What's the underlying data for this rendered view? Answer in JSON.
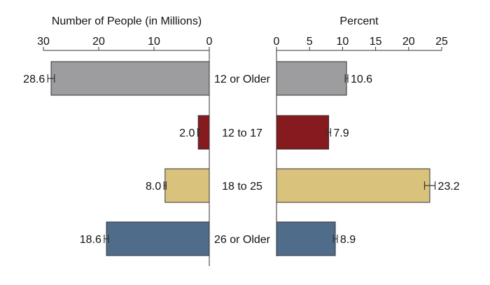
{
  "chart_data": [
    {
      "type": "bar",
      "orientation": "horizontal",
      "direction": "leftward",
      "title": "Number of People (in Millions)",
      "categories": [
        "12 or Older",
        "12 to 17",
        "18 to 25",
        "26 or Older"
      ],
      "values": [
        28.6,
        2.0,
        8.0,
        18.6
      ],
      "value_labels": [
        "28.6",
        "2.0",
        "8.0",
        "18.6"
      ],
      "error_half_width": [
        0.6,
        0.1,
        0.2,
        0.4
      ],
      "xlim": [
        0,
        30
      ],
      "ticks": [
        30,
        20,
        10,
        0
      ],
      "tick_labels": [
        "30",
        "20",
        "10",
        "0"
      ],
      "colors": [
        "#9d9d9f",
        "#871a1f",
        "#d9c27c",
        "#4f6d8a"
      ],
      "grid": false
    },
    {
      "type": "bar",
      "orientation": "horizontal",
      "direction": "rightward",
      "title": "Percent",
      "categories": [
        "12 or Older",
        "12 to 17",
        "18 to 25",
        "26 or Older"
      ],
      "values": [
        10.6,
        7.9,
        23.2,
        8.9
      ],
      "value_labels": [
        "10.6",
        "7.9",
        "23.2",
        "8.9"
      ],
      "error_half_width": [
        0.2,
        0.3,
        0.8,
        0.3
      ],
      "xlim": [
        0,
        25
      ],
      "ticks": [
        0,
        5,
        10,
        15,
        20,
        25
      ],
      "tick_labels": [
        "0",
        "5",
        "10",
        "15",
        "20",
        "25"
      ],
      "colors": [
        "#9d9d9f",
        "#871a1f",
        "#d9c27c",
        "#4f6d8a"
      ],
      "grid": false
    }
  ]
}
